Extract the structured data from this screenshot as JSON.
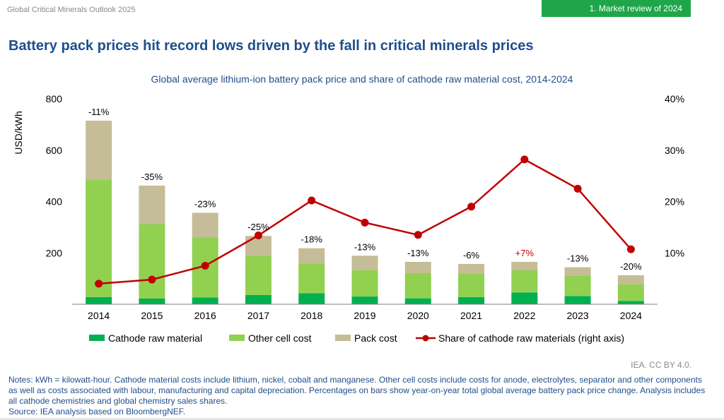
{
  "header": {
    "report": "Global Critical Minerals Outlook 2025",
    "section": "1. Market review of 2024"
  },
  "page_title": "Battery pack prices hit record lows driven by the fall in critical minerals prices",
  "chart_data": {
    "type": "bar",
    "stacked": true,
    "title": "Global average lithium-ion battery pack price and share of cathode raw material cost, 2014-2024",
    "ylabel": "USD/kWh",
    "ylim": [
      0,
      800
    ],
    "yticks": [
      200,
      400,
      600,
      800
    ],
    "y2lim": [
      0,
      40
    ],
    "y2ticks": [
      "10%",
      "20%",
      "30%",
      "40%"
    ],
    "categories": [
      "2014",
      "2015",
      "2016",
      "2017",
      "2018",
      "2019",
      "2020",
      "2021",
      "2022",
      "2023",
      "2024"
    ],
    "series": [
      {
        "name": "Cathode raw material",
        "color": "#00b050",
        "values": [
          28,
          22,
          26,
          36,
          43,
          30,
          23,
          28,
          46,
          32,
          13
        ]
      },
      {
        "name": "Other cell cost",
        "color": "#92d050",
        "values": [
          457,
          290,
          234,
          152,
          115,
          103,
          98,
          92,
          86,
          78,
          65
        ]
      },
      {
        "name": "Pack cost",
        "color": "#c4bd97",
        "values": [
          230,
          150,
          96,
          78,
          60,
          56,
          44,
          37,
          33,
          34,
          35
        ]
      }
    ],
    "line_series": {
      "name": "Share of cathode raw materials (right axis)",
      "color": "#c00000",
      "values": [
        4.0,
        4.8,
        7.5,
        13.4,
        20.2,
        15.9,
        13.5,
        19.0,
        28.2,
        22.5,
        10.7
      ]
    },
    "bar_labels": [
      "-11%",
      "-35%",
      "-23%",
      "-25%",
      "-18%",
      "-13%",
      "-13%",
      "-6%",
      "+7%",
      "-13%",
      "-20%"
    ],
    "bar_label_colors": [
      "#000000",
      "#000000",
      "#000000",
      "#000000",
      "#000000",
      "#000000",
      "#000000",
      "#000000",
      "#c00000",
      "#000000",
      "#000000"
    ],
    "legend_position": "bottom"
  },
  "credit": "IEA. CC BY 4.0.",
  "notes": "Notes: kWh = kilowatt-hour. Cathode material costs include lithium, nickel, cobalt and manganese. Other cell costs include costs for anode, electrolytes, separator and other components as well as costs associated with labour, manufacturing and capital depreciation. Percentages on bars show year-on-year total global average battery pack price change. Analysis includes all cathode chemistries and global chemistry sales shares.",
  "source": "Source: IEA analysis based on BloombergNEF."
}
